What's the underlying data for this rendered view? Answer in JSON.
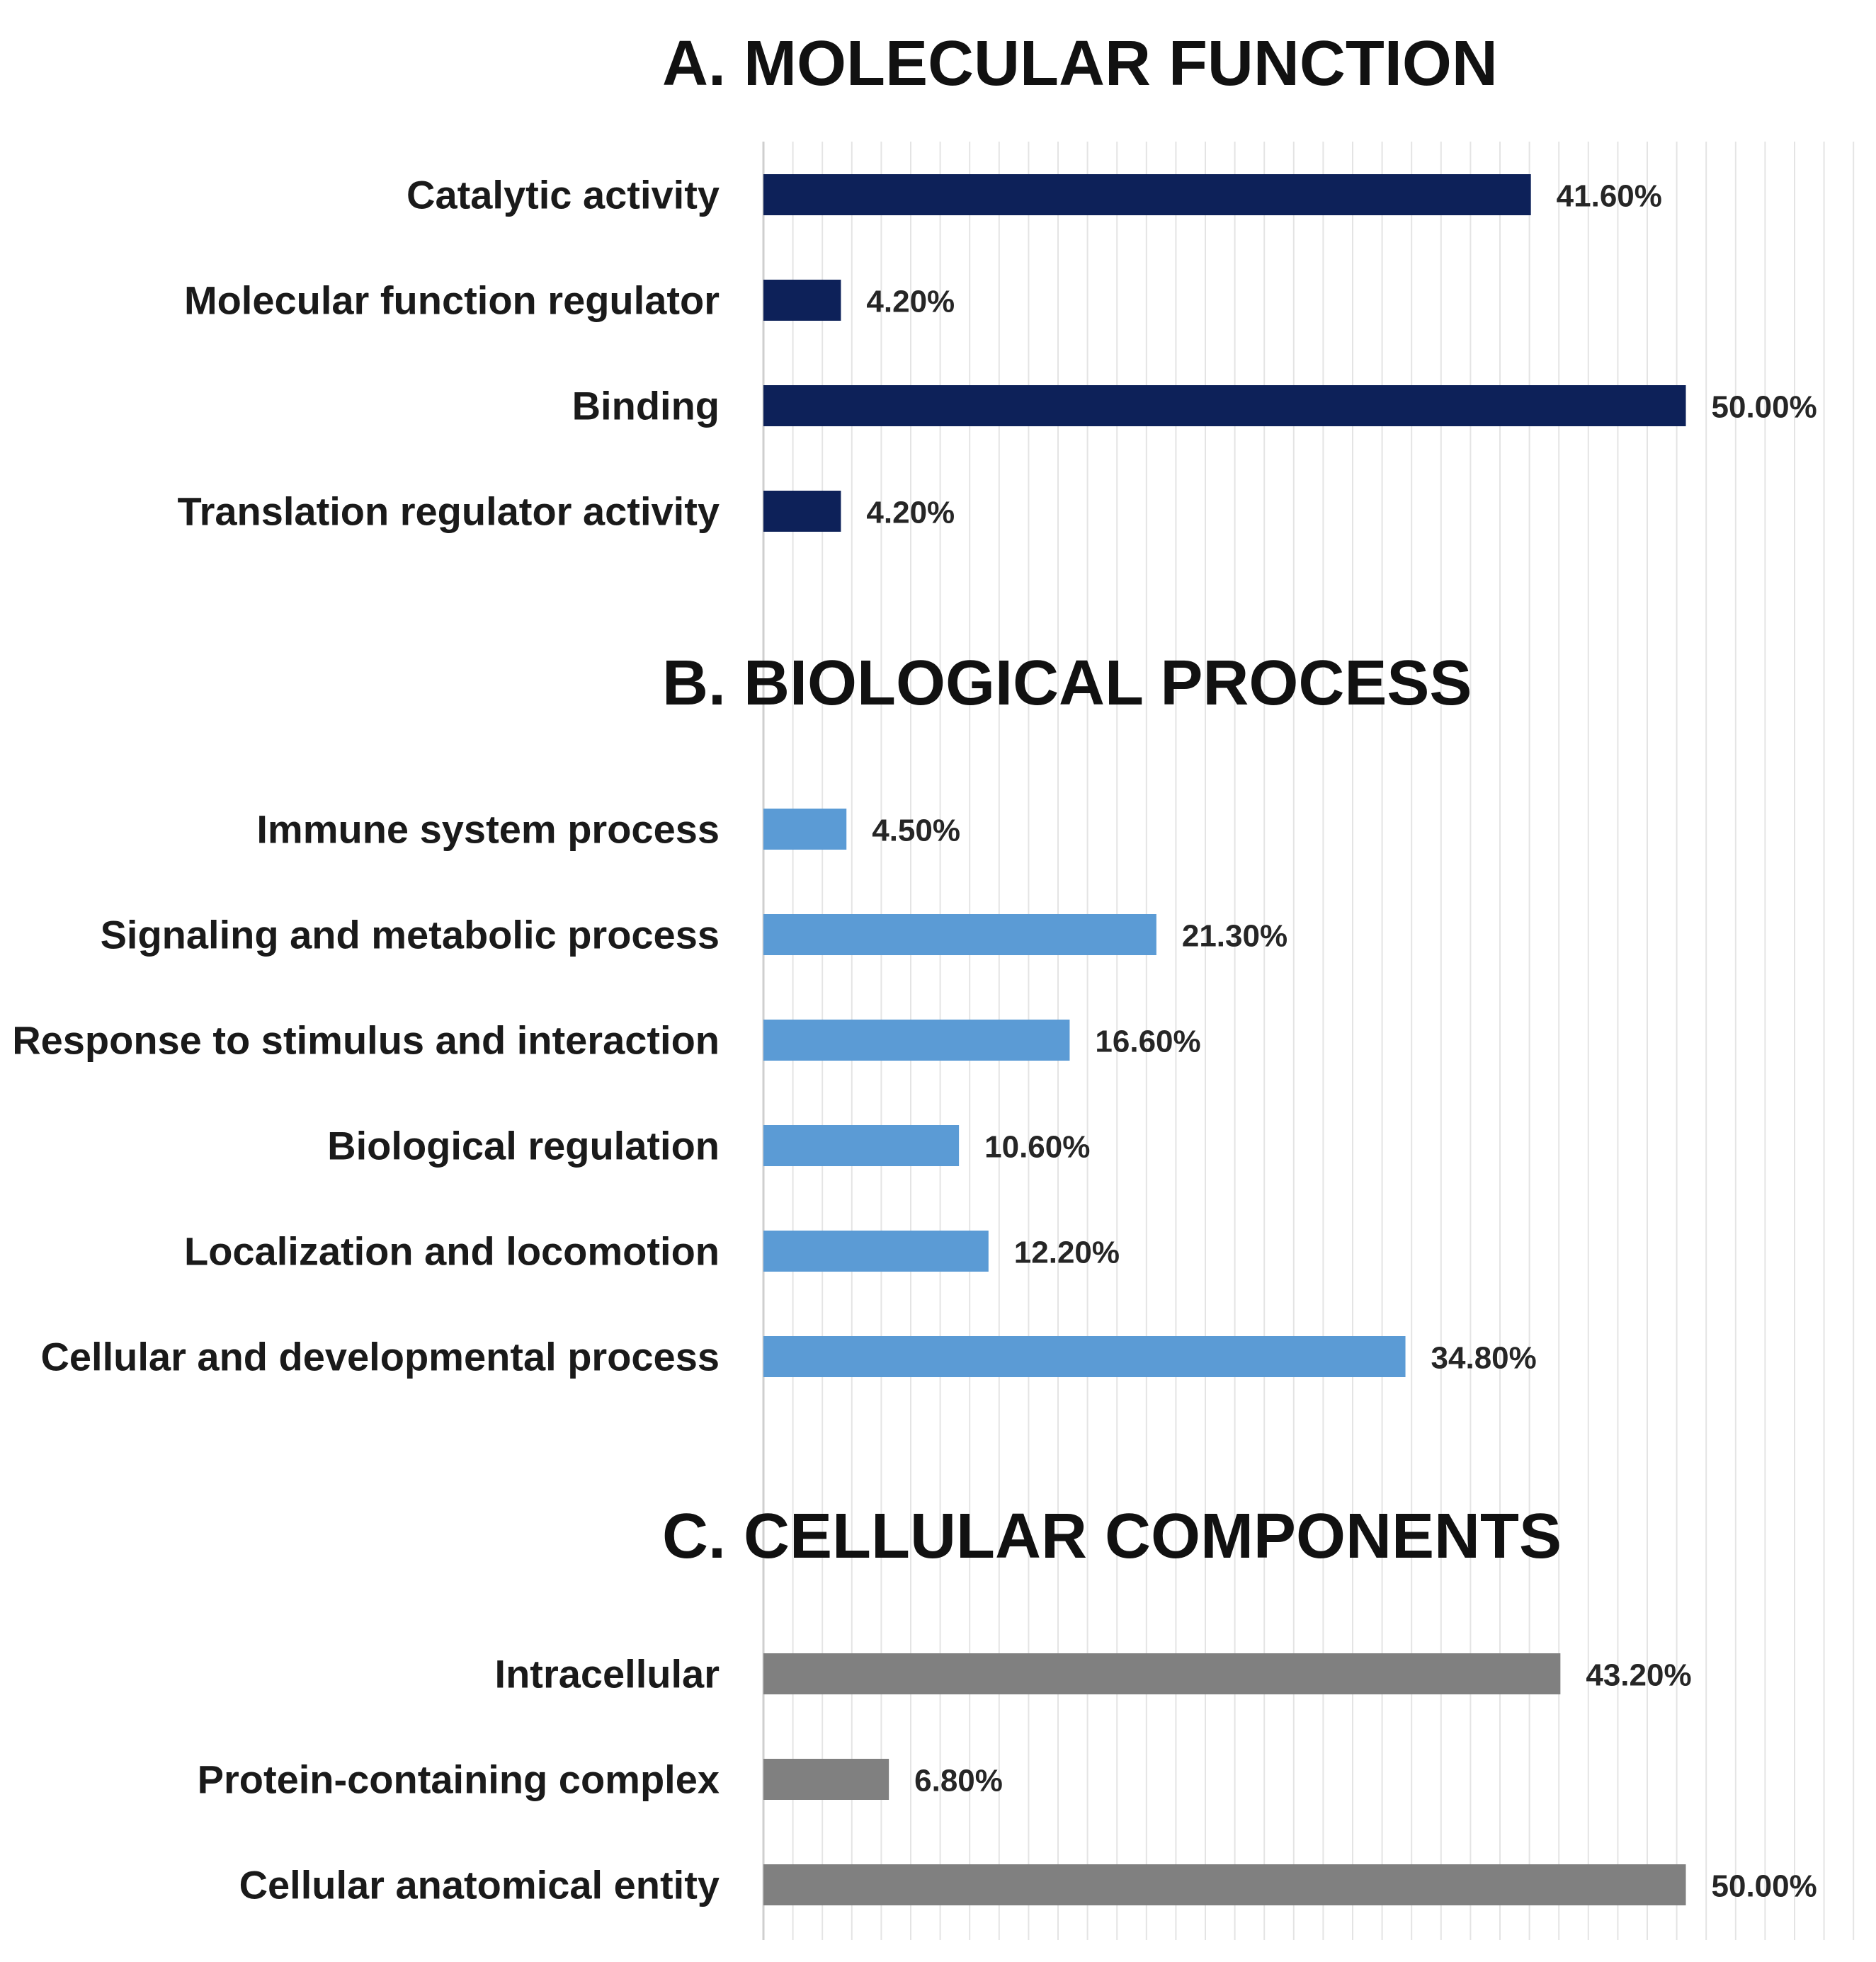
{
  "chart_data": [
    {
      "type": "bar",
      "orientation": "horizontal",
      "title": "A. MOLECULAR FUNCTION",
      "color": "#0d2159",
      "categories": [
        "Catalytic activity",
        "Molecular function regulator",
        "Binding",
        "Translation regulator activity"
      ],
      "values": [
        41.6,
        4.2,
        50.0,
        4.2
      ],
      "value_labels": [
        "41.60%",
        "4.20%",
        "50.00%",
        "4.20%"
      ],
      "xlim": [
        0,
        60
      ],
      "grid": true
    },
    {
      "type": "bar",
      "orientation": "horizontal",
      "title": "B. BIOLOGICAL PROCESS",
      "color": "#5b9bd5",
      "categories": [
        "Immune system process",
        "Signaling and metabolic process",
        "Response to stimulus and interaction",
        "Biological regulation",
        "Localization and locomotion",
        "Cellular and developmental process"
      ],
      "values": [
        4.5,
        21.3,
        16.6,
        10.6,
        12.2,
        34.8
      ],
      "value_labels": [
        "4.50%",
        "21.30%",
        "16.60%",
        "10.60%",
        "12.20%",
        "34.80%"
      ],
      "xlim": [
        0,
        60
      ],
      "grid": true
    },
    {
      "type": "bar",
      "orientation": "horizontal",
      "title": "C. CELLULAR COMPONENTS",
      "color": "#808080",
      "categories": [
        "Intracellular",
        "Protein-containing complex",
        "Cellular anatomical entity"
      ],
      "values": [
        43.2,
        6.8,
        50.0
      ],
      "value_labels": [
        "43.20%",
        "6.80%",
        "50.00%"
      ],
      "xlim": [
        0,
        60
      ],
      "grid": true
    }
  ]
}
